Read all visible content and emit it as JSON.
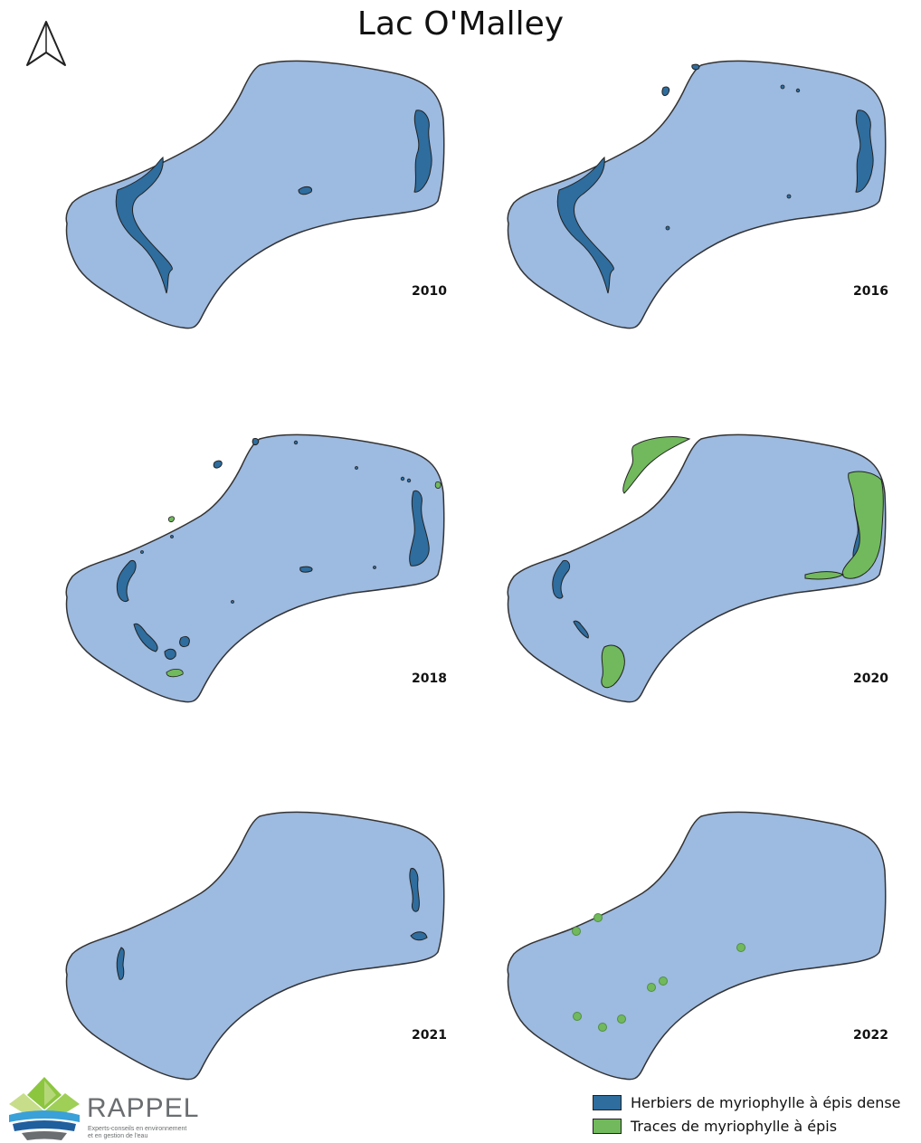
{
  "title": "Lac O'Malley",
  "colors": {
    "lake": "#9dbae0",
    "dense": "#2e6d9e",
    "traces": "#71b95c",
    "outline": "#333333"
  },
  "panels": [
    {
      "year": "2010"
    },
    {
      "year": "2016"
    },
    {
      "year": "2018"
    },
    {
      "year": "2020"
    },
    {
      "year": "2021"
    },
    {
      "year": "2022"
    }
  ],
  "legend": [
    {
      "label": "Herbiers de myriophylle à épis dense",
      "color": "#2e6d9e"
    },
    {
      "label": "Traces de myriophylle à épis",
      "color": "#71b95c"
    }
  ],
  "logo": {
    "name": "RAPPEL",
    "tagline_1": "Experts-conseils en environnement",
    "tagline_2": "et en gestion de l'eau"
  },
  "north_arrow": "north-arrow-icon"
}
